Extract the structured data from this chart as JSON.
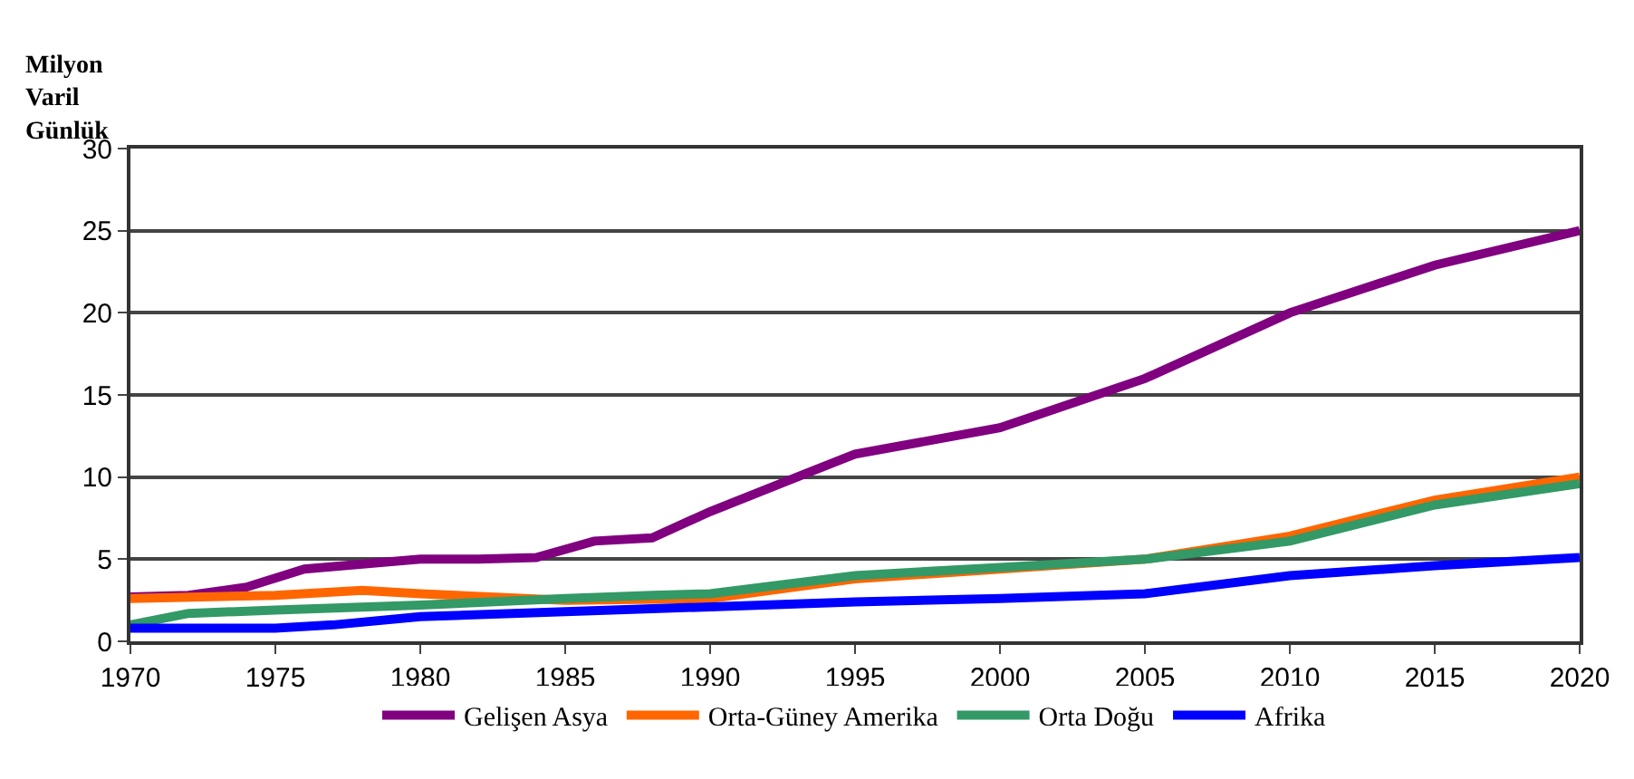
{
  "chart_data": {
    "type": "line",
    "ylabel": "Milyon\nVaril\nGünlük",
    "xlim": [
      1970,
      2020
    ],
    "xticks": [
      1970,
      1975,
      1980,
      1985,
      1990,
      1995,
      2000,
      2005,
      2010,
      2015,
      2020
    ],
    "ylim": [
      0,
      30
    ],
    "yticks": [
      0,
      5,
      10,
      15,
      20,
      25,
      30
    ],
    "grid": "y",
    "legend": "bottom",
    "marker": "none",
    "line_style": "solid",
    "series": [
      {
        "name": "Gelişen Asya",
        "color": "#800080",
        "x": [
          1970,
          1972,
          1974,
          1976,
          1978,
          1980,
          1982,
          1984,
          1986,
          1988,
          1990,
          1993,
          1995,
          2000,
          2005,
          2010,
          2015,
          2020
        ],
        "values": [
          2.7,
          2.8,
          3.3,
          4.4,
          4.7,
          5.0,
          5.0,
          5.1,
          6.1,
          6.3,
          7.9,
          10.0,
          11.4,
          13.0,
          16.0,
          20.0,
          22.9,
          25.0
        ]
      },
      {
        "name": "Orta-Güney Amerika",
        "color": "#ff6600",
        "x": [
          1970,
          1975,
          1978,
          1980,
          1985,
          1990,
          1995,
          2000,
          2005,
          2010,
          2015,
          2020
        ],
        "values": [
          2.6,
          2.8,
          3.1,
          2.9,
          2.5,
          2.6,
          3.8,
          4.4,
          5.0,
          6.4,
          8.6,
          10.0
        ]
      },
      {
        "name": "Orta Doğu",
        "color": "#339966",
        "x": [
          1970,
          1972,
          1975,
          1980,
          1985,
          1988,
          1990,
          1995,
          2000,
          2005,
          2010,
          2015,
          2020
        ],
        "values": [
          1.0,
          1.7,
          1.9,
          2.2,
          2.6,
          2.8,
          2.9,
          4.0,
          4.5,
          5.0,
          6.1,
          8.3,
          9.6
        ]
      },
      {
        "name": "Afrika",
        "color": "#0000ff",
        "x": [
          1970,
          1975,
          1977,
          1980,
          1985,
          1990,
          1995,
          2000,
          2005,
          2010,
          2015,
          2020
        ],
        "values": [
          0.8,
          0.8,
          1.0,
          1.5,
          1.8,
          2.1,
          2.4,
          2.6,
          2.9,
          4.0,
          4.6,
          5.1
        ]
      }
    ]
  }
}
